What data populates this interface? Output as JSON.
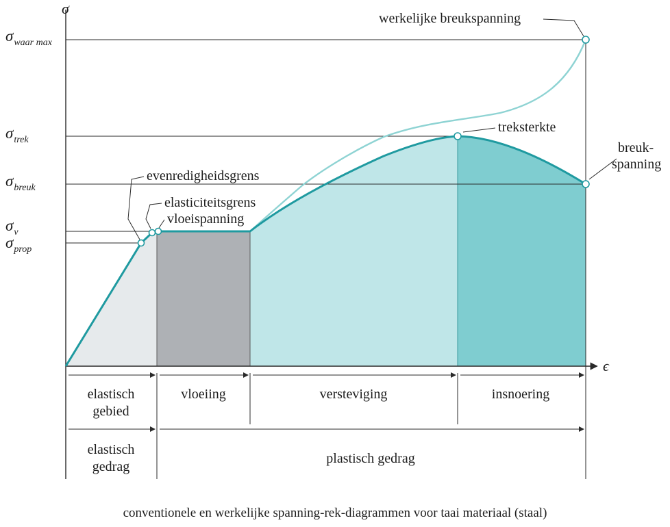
{
  "axes": {
    "y_symbol": "σ",
    "x_symbol": "ϵ"
  },
  "y_levels": [
    {
      "id": "waar-max",
      "symbol": "σ",
      "subscript": "waar max"
    },
    {
      "id": "trek",
      "symbol": "σ",
      "subscript": "trek"
    },
    {
      "id": "breuk",
      "symbol": "σ",
      "subscript": "breuk"
    },
    {
      "id": "v",
      "symbol": "σ",
      "subscript": "v"
    },
    {
      "id": "prop",
      "symbol": "σ",
      "subscript": "prop"
    }
  ],
  "annotations": {
    "werkelijke_breukspanning": "werkelijke breukspanning",
    "treksterkte": "treksterkte",
    "breuk_line1": "breuk-",
    "breuk_line2": "spanning",
    "evenredigheidsgrens": "evenredigheidsgrens",
    "elasticiteitsgrens": "elasticiteitsgrens",
    "vloeispanning": "vloeispanning"
  },
  "regions": {
    "elastisch_gebied_line1": "elastisch",
    "elastisch_gebied_line2": "gebied",
    "vloeiing": "vloeiing",
    "versteviging": "versteviging",
    "insnoering": "insnoering"
  },
  "behavior": {
    "elastisch_gedrag_line1": "elastisch",
    "elastisch_gedrag_line2": "gedrag",
    "plastisch_gedrag": "plastisch gedrag"
  },
  "caption": "conventionele en werkelijke spanning-rek-diagrammen voor taai materiaal (staal)",
  "colors": {
    "conventional_curve": "#1f9aa0",
    "true_curve": "#8ed3d3",
    "elastic_fill": "#e6eaec",
    "yield_fill": "#aeb1b5",
    "hardening_fill": "#bfe6e8",
    "necking_fill": "#7fcdd0",
    "axis": "#2a2a2a"
  }
}
